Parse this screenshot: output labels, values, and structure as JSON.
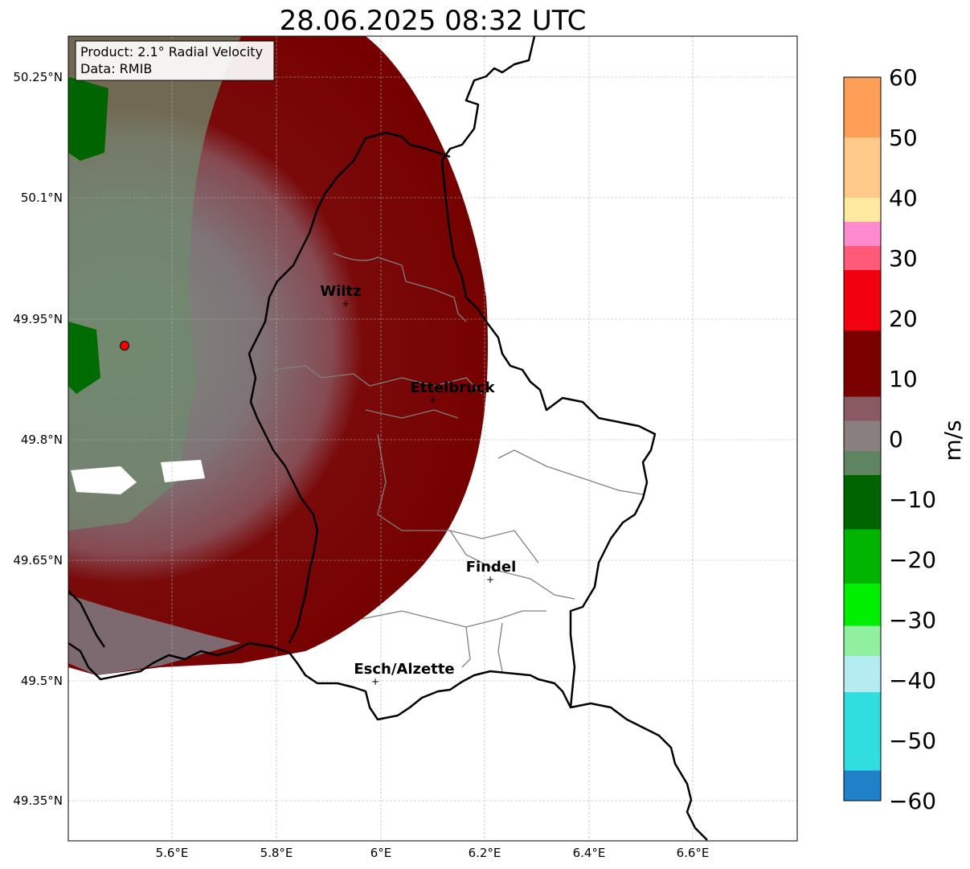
{
  "title": "28.06.2025 08:32 UTC",
  "info_box": {
    "product_line": "Product: 2.1° Radial Velocity",
    "data_line": "Data: RMIB"
  },
  "map": {
    "lon_range": [
      5.4,
      6.8
    ],
    "lat_range": [
      49.29,
      50.31
    ],
    "lon_ticks": [
      "5.6°E",
      "5.8°E",
      "6°E",
      "6.2°E",
      "6.4°E",
      "6.6°E"
    ],
    "lat_ticks": [
      "50.25°N",
      "50.1°N",
      "49.95°N",
      "49.8°N",
      "49.65°N",
      "49.5°N",
      "49.35°N"
    ],
    "grid": true,
    "radar_site": {
      "lon": 5.51,
      "lat": 49.92
    },
    "cities": [
      {
        "name": "Wiltz",
        "lon": 5.93,
        "lat": 49.97
      },
      {
        "name": "Ettelbruck",
        "lon": 6.1,
        "lat": 49.85
      },
      {
        "name": "Findel",
        "lon": 6.21,
        "lat": 49.63
      },
      {
        "name": "Esch/Alzette",
        "lon": 5.99,
        "lat": 49.5
      }
    ]
  },
  "colorbar": {
    "label": "m/s",
    "min": -60,
    "max": 60,
    "tick_labels": [
      "60",
      "50",
      "40",
      "30",
      "20",
      "10",
      "0",
      "−10",
      "−20",
      "−30",
      "−40",
      "−50",
      "−60"
    ],
    "colors": {
      "orange": "#ff9e57",
      "peach": "#ffc98a",
      "light_yellow": "#ffe8a0",
      "pink": "#ff8ad0",
      "rose": "#ff5a78",
      "red": "#f20010",
      "dark_red": "#7a0000",
      "maroon_gray": "#8a5a62",
      "gray": "#8a7f7f",
      "gray_green": "#5f8560",
      "dark_green": "#006400",
      "green": "#00b400",
      "bright_green": "#00ee00",
      "light_green": "#90f0a0",
      "pale_cyan": "#b4ecf2",
      "cyan": "#30dedf",
      "blue": "#2080c8"
    }
  }
}
